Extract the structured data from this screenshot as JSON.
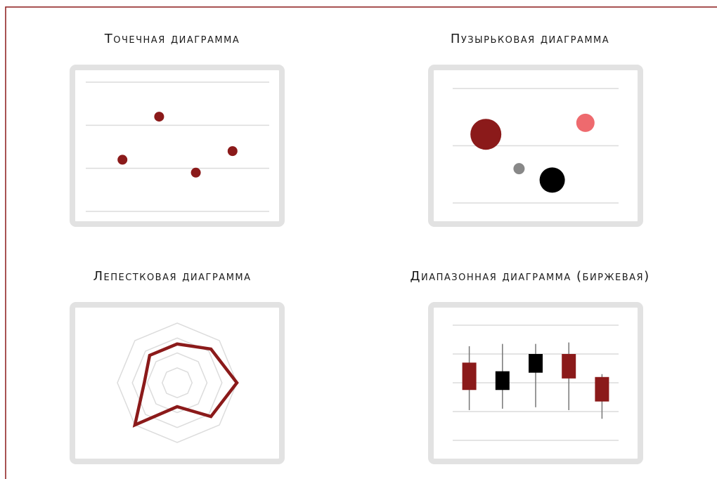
{
  "chart_data": [
    {
      "type": "scatter",
      "title": "Точечная диаграмма",
      "color": "#8b1a1a",
      "x": [
        1,
        2,
        3,
        4
      ],
      "values": [
        1.2,
        2.2,
        0.9,
        1.4
      ],
      "xlim": [
        0,
        5
      ],
      "ylim": [
        0,
        3
      ],
      "yticks": [
        0,
        1,
        2,
        3
      ],
      "grid": true
    },
    {
      "type": "bubble",
      "title": "Пузырьковая диаграмма",
      "x": [
        1,
        2,
        3,
        4
      ],
      "values": [
        1.2,
        0.6,
        0.4,
        1.4
      ],
      "sizes": [
        22,
        8,
        18,
        13
      ],
      "colors": [
        "#8b1a1a",
        "#888888",
        "#000000",
        "#ee6a6e"
      ],
      "xlim": [
        0,
        5
      ],
      "ylim": [
        0,
        2
      ],
      "yticks": [
        0,
        1,
        2
      ],
      "grid": true
    },
    {
      "type": "radar",
      "title": "Лепестковая диаграмма",
      "color": "#8b1a1a",
      "values": [
        0.65,
        0.8,
        1.0,
        0.8,
        0.4,
        1.0,
        0.55,
        0.65
      ],
      "ylim": [
        0,
        1
      ],
      "yticks": [
        0.25,
        0.5,
        0.75,
        1
      ],
      "grid": true
    },
    {
      "type": "candlestick",
      "title": "Диапазонная диаграмма (биржевая)",
      "up_color": "#000000",
      "down_color": "#8b1a1a",
      "open": [
        2.7,
        1.75,
        2.35,
        3.0,
        2.2
      ],
      "high": [
        3.27,
        3.35,
        3.35,
        3.4,
        2.3
      ],
      "low": [
        1.05,
        1.1,
        1.15,
        1.05,
        0.75
      ],
      "close": [
        1.75,
        2.4,
        3.0,
        2.15,
        1.35
      ],
      "ylim": [
        0,
        4
      ],
      "yticks": [
        0,
        1,
        2,
        3,
        4
      ],
      "grid": true
    }
  ]
}
